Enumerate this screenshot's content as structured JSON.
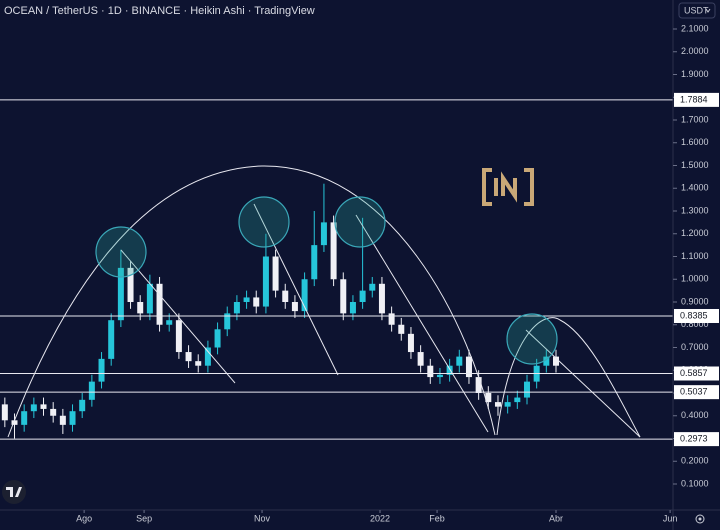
{
  "chart_data": {
    "type": "candlestick",
    "title": "OCEAN / TetherUS · 1D · BINANCE · Heikin Ashi · TradingView",
    "currency": "USDT",
    "categories": [
      null,
      null,
      null,
      null,
      null,
      null,
      null,
      null,
      null,
      null,
      null,
      null,
      null,
      null,
      null,
      null,
      null,
      null,
      null,
      null,
      null,
      null,
      null,
      null,
      null,
      null,
      null,
      null,
      null,
      null,
      null,
      null,
      null,
      null,
      null,
      null,
      null,
      null,
      null,
      null,
      null,
      null,
      null,
      null,
      null,
      null,
      null,
      null,
      null,
      null,
      null,
      null,
      null,
      null,
      null,
      null,
      null,
      null
    ],
    "open": [
      0.45,
      0.38,
      0.36,
      0.42,
      0.45,
      0.43,
      0.4,
      0.36,
      0.42,
      0.47,
      0.55,
      0.65,
      0.82,
      1.05,
      0.9,
      0.85,
      0.98,
      0.8,
      0.82,
      0.68,
      0.64,
      0.62,
      0.7,
      0.78,
      0.85,
      0.9,
      0.92,
      0.88,
      1.1,
      0.95,
      0.9,
      0.86,
      1.0,
      1.15,
      1.25,
      1.0,
      0.85,
      0.9,
      0.95,
      0.98,
      0.85,
      0.8,
      0.76,
      0.68,
      0.62,
      0.57,
      0.58,
      0.62,
      0.66,
      0.57,
      0.5,
      0.46,
      0.44,
      0.46,
      0.48,
      0.55,
      0.62,
      0.66
    ],
    "high": [
      0.48,
      0.41,
      0.45,
      0.48,
      0.48,
      0.46,
      0.43,
      0.45,
      0.5,
      0.58,
      0.68,
      0.85,
      1.13,
      1.08,
      0.93,
      1.02,
      1.01,
      0.85,
      0.85,
      0.71,
      0.67,
      0.73,
      0.81,
      0.88,
      0.93,
      0.95,
      0.95,
      1.2,
      1.13,
      0.98,
      0.93,
      1.03,
      1.3,
      1.42,
      1.28,
      1.03,
      0.93,
      1.27,
      1.01,
      1.01,
      0.88,
      0.83,
      0.79,
      0.71,
      0.65,
      0.61,
      0.65,
      0.69,
      0.69,
      0.6,
      0.53,
      0.49,
      0.49,
      0.51,
      0.58,
      0.65,
      0.69,
      0.69
    ],
    "low": [
      0.35,
      0.3,
      0.33,
      0.39,
      0.4,
      0.37,
      0.32,
      0.33,
      0.39,
      0.44,
      0.52,
      0.62,
      0.79,
      0.87,
      0.82,
      0.82,
      0.77,
      0.77,
      0.65,
      0.61,
      0.59,
      0.59,
      0.67,
      0.75,
      0.82,
      0.87,
      0.85,
      0.85,
      0.92,
      0.87,
      0.83,
      0.83,
      0.97,
      1.12,
      0.97,
      0.82,
      0.82,
      0.87,
      0.92,
      0.82,
      0.77,
      0.73,
      0.65,
      0.59,
      0.54,
      0.54,
      0.55,
      0.59,
      0.54,
      0.47,
      0.43,
      0.4,
      0.41,
      0.43,
      0.45,
      0.52,
      0.59,
      0.59
    ],
    "close": [
      0.38,
      0.36,
      0.42,
      0.45,
      0.43,
      0.4,
      0.36,
      0.42,
      0.47,
      0.55,
      0.65,
      0.82,
      1.05,
      0.9,
      0.85,
      0.98,
      0.8,
      0.82,
      0.68,
      0.64,
      0.62,
      0.7,
      0.78,
      0.85,
      0.9,
      0.92,
      0.88,
      1.1,
      0.95,
      0.9,
      0.86,
      1.0,
      1.15,
      1.25,
      1.0,
      0.85,
      0.9,
      0.95,
      0.98,
      0.85,
      0.8,
      0.76,
      0.68,
      0.62,
      0.57,
      0.58,
      0.62,
      0.66,
      0.57,
      0.5,
      0.46,
      0.44,
      0.46,
      0.48,
      0.55,
      0.62,
      0.66,
      0.62
    ],
    "up_color": "#26c6da",
    "down_color": "#f0f0f5",
    "levels": [
      1.7884,
      0.8385,
      0.5857,
      0.5037,
      0.2973
    ],
    "ylim": [
      0,
      2.2
    ],
    "yticks": [
      {
        "value": 0.1,
        "label": "0.1000"
      },
      {
        "value": 0.2,
        "label": "0.2000"
      },
      {
        "value": 0.3,
        "label": "0.3000"
      },
      {
        "value": 0.4,
        "label": "0.4000"
      },
      {
        "value": 0.5,
        "label": "0.5000"
      },
      {
        "value": 0.6,
        "label": "0.6000"
      },
      {
        "value": 0.7,
        "label": "0.7000"
      },
      {
        "value": 0.8,
        "label": "0.8000"
      },
      {
        "value": 0.9,
        "label": "0.9000"
      },
      {
        "value": 1.0,
        "label": "1.0000"
      },
      {
        "value": 1.1,
        "label": "1.1000"
      },
      {
        "value": 1.2,
        "label": "1.2000"
      },
      {
        "value": 1.3,
        "label": "1.3000"
      },
      {
        "value": 1.4,
        "label": "1.4000"
      },
      {
        "value": 1.5,
        "label": "1.5000"
      },
      {
        "value": 1.6,
        "label": "1.6000"
      },
      {
        "value": 1.7,
        "label": "1.7000"
      },
      {
        "value": 1.8,
        "label": "1.8000"
      },
      {
        "value": 1.9,
        "label": "1.9000"
      },
      {
        "value": 2.0,
        "label": "2.0000"
      },
      {
        "value": 2.1,
        "label": "2.1000"
      }
    ],
    "xlim": [
      -0.5,
      69.1
    ],
    "xticks": [
      {
        "value": 8.2,
        "label": "Ago"
      },
      {
        "value": 14.4,
        "label": "Sep"
      },
      {
        "value": 26.6,
        "label": "Nov"
      },
      {
        "value": 38.8,
        "label": "2022"
      },
      {
        "value": 44.7,
        "label": "Feb"
      },
      {
        "value": 57.0,
        "label": "Abr"
      },
      {
        "value": 68.8,
        "label": "Jun"
      }
    ]
  }
}
